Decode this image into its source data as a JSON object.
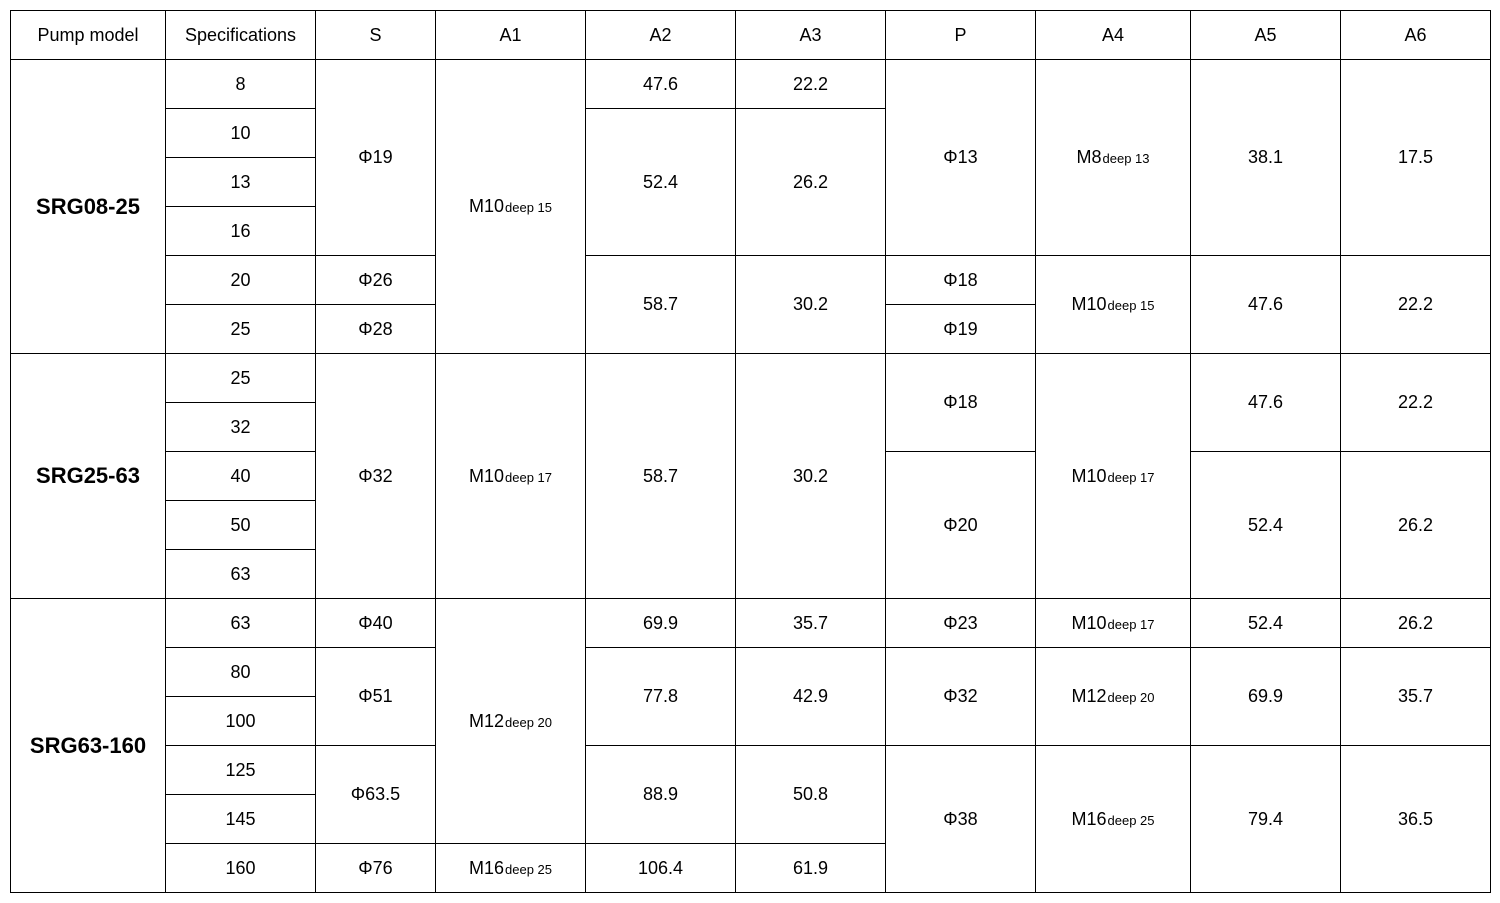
{
  "columns": [
    "Pump model",
    "Specifications",
    "S",
    "A1",
    "A2",
    "A3",
    "P",
    "A4",
    "A5",
    "A6"
  ],
  "rows": [
    {
      "cells": [
        {
          "text": "SRG08-25",
          "rowspan": 6,
          "class": "pump-model"
        },
        {
          "text": "8"
        },
        {
          "text": "Φ19",
          "rowspan": 4
        },
        {
          "deep": {
            "pre": "M10",
            "suf": "deep 15"
          },
          "rowspan": 6
        },
        {
          "text": "47.6"
        },
        {
          "text": "22.2"
        },
        {
          "text": "Φ13",
          "rowspan": 4
        },
        {
          "deep": {
            "pre": "M8",
            "suf": "deep 13"
          },
          "rowspan": 4
        },
        {
          "text": "38.1",
          "rowspan": 4
        },
        {
          "text": "17.5",
          "rowspan": 4
        }
      ]
    },
    {
      "cells": [
        {
          "text": "10"
        },
        {
          "text": "52.4",
          "rowspan": 3
        },
        {
          "text": "26.2",
          "rowspan": 3
        }
      ]
    },
    {
      "cells": [
        {
          "text": "13"
        }
      ]
    },
    {
      "cells": [
        {
          "text": "16"
        }
      ]
    },
    {
      "cells": [
        {
          "text": "20"
        },
        {
          "text": "Φ26"
        },
        {
          "text": "58.7",
          "rowspan": 2
        },
        {
          "text": "30.2",
          "rowspan": 2
        },
        {
          "text": "Φ18"
        },
        {
          "deep": {
            "pre": "M10",
            "suf": "deep 15"
          },
          "rowspan": 2
        },
        {
          "text": "47.6",
          "rowspan": 2
        },
        {
          "text": "22.2",
          "rowspan": 2
        }
      ]
    },
    {
      "cells": [
        {
          "text": "25"
        },
        {
          "text": "Φ28"
        },
        {
          "text": "Φ19"
        }
      ]
    },
    {
      "cells": [
        {
          "text": "SRG25-63",
          "rowspan": 5,
          "class": "pump-model"
        },
        {
          "text": "25"
        },
        {
          "text": "Φ32",
          "rowspan": 5
        },
        {
          "deep": {
            "pre": "M10",
            "suf": "deep 17"
          },
          "rowspan": 5
        },
        {
          "text": "58.7",
          "rowspan": 5
        },
        {
          "text": "30.2",
          "rowspan": 5
        },
        {
          "text": "Φ18",
          "rowspan": 2
        },
        {
          "deep": {
            "pre": "M10",
            "suf": "deep 17"
          },
          "rowspan": 5
        },
        {
          "text": "47.6",
          "rowspan": 2
        },
        {
          "text": "22.2",
          "rowspan": 2
        }
      ]
    },
    {
      "cells": [
        {
          "text": "32"
        }
      ]
    },
    {
      "cells": [
        {
          "text": "40"
        },
        {
          "text": "Φ20",
          "rowspan": 3
        },
        {
          "text": "52.4",
          "rowspan": 3
        },
        {
          "text": "26.2",
          "rowspan": 3
        }
      ]
    },
    {
      "cells": [
        {
          "text": "50"
        }
      ]
    },
    {
      "cells": [
        {
          "text": "63"
        }
      ]
    },
    {
      "cells": [
        {
          "text": "SRG63-160",
          "rowspan": 6,
          "class": "pump-model"
        },
        {
          "text": "63"
        },
        {
          "text": "Φ40"
        },
        {
          "deep": {
            "pre": "M12",
            "suf": "deep 20"
          },
          "rowspan": 5
        },
        {
          "text": "69.9"
        },
        {
          "text": "35.7"
        },
        {
          "text": "Φ23"
        },
        {
          "deep": {
            "pre": "M10",
            "suf": "deep 17"
          }
        },
        {
          "text": "52.4"
        },
        {
          "text": "26.2"
        }
      ]
    },
    {
      "cells": [
        {
          "text": "80"
        },
        {
          "text": "Φ51",
          "rowspan": 2
        },
        {
          "text": "77.8",
          "rowspan": 2
        },
        {
          "text": "42.9",
          "rowspan": 2
        },
        {
          "text": "Φ32",
          "rowspan": 2
        },
        {
          "deep": {
            "pre": "M12",
            "suf": "deep 20"
          },
          "rowspan": 2
        },
        {
          "text": "69.9",
          "rowspan": 2
        },
        {
          "text": "35.7",
          "rowspan": 2
        }
      ]
    },
    {
      "cells": [
        {
          "text": "100"
        }
      ]
    },
    {
      "cells": [
        {
          "text": "125"
        },
        {
          "text": "Φ63.5",
          "rowspan": 2
        },
        {
          "text": "88.9",
          "rowspan": 2
        },
        {
          "text": "50.8",
          "rowspan": 2
        },
        {
          "text": "Φ38",
          "rowspan": 3
        },
        {
          "deep": {
            "pre": "M16",
            "suf": "deep 25"
          },
          "rowspan": 3
        },
        {
          "text": "79.4",
          "rowspan": 3
        },
        {
          "text": "36.5",
          "rowspan": 3
        }
      ]
    },
    {
      "cells": [
        {
          "text": "145"
        }
      ]
    },
    {
      "cells": [
        {
          "text": "160"
        },
        {
          "text": "Φ76"
        },
        {
          "deep": {
            "pre": "M16",
            "suf": "deep 25"
          }
        },
        {
          "text": "106.4"
        },
        {
          "text": "61.9"
        }
      ]
    }
  ]
}
